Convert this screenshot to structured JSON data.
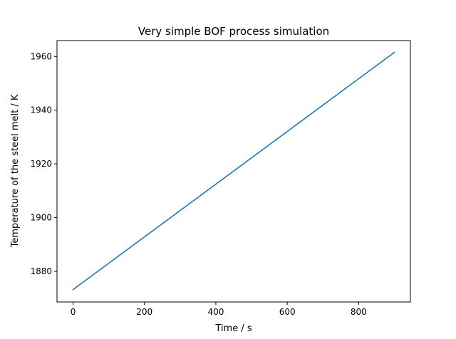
{
  "chart_data": {
    "type": "line",
    "title": "Very simple BOF process simulation",
    "xlabel": "Time / s",
    "ylabel": "Temperature of the steel melt / K",
    "xlim": [
      -45,
      945
    ],
    "ylim": [
      1868.6,
      1965.9
    ],
    "xticks": [
      0,
      200,
      400,
      600,
      800
    ],
    "yticks": [
      1880,
      1900,
      1920,
      1940,
      1960
    ],
    "grid": false,
    "series": [
      {
        "color": "#1f77b4",
        "x": [
          0,
          900
        ],
        "y": [
          1873.2,
          1961.5
        ]
      }
    ]
  }
}
